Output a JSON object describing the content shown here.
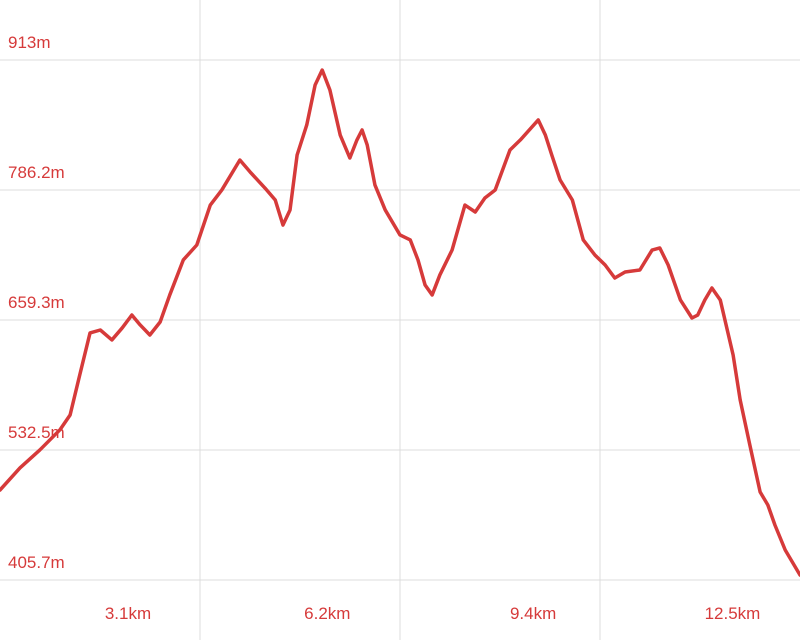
{
  "chart_data": {
    "type": "line",
    "x": [
      1.11,
      1.42,
      1.73,
      2.04,
      2.2,
      2.35,
      2.51,
      2.67,
      2.85,
      3.01,
      3.16,
      3.29,
      3.44,
      3.6,
      3.75,
      3.96,
      4.17,
      4.38,
      4.56,
      4.84,
      5.0,
      5.23,
      5.39,
      5.51,
      5.62,
      5.73,
      5.88,
      6.01,
      6.12,
      6.24,
      6.4,
      6.55,
      6.66,
      6.74,
      6.82,
      6.94,
      7.1,
      7.33,
      7.49,
      7.61,
      7.72,
      7.83,
      7.95,
      8.14,
      8.34,
      8.5,
      8.65,
      8.81,
      9.04,
      9.2,
      9.48,
      9.59,
      9.69,
      9.82,
      10.01,
      10.18,
      10.36,
      10.52,
      10.67,
      10.83,
      11.06,
      11.25,
      11.37,
      11.5,
      11.69,
      11.87,
      11.96,
      12.07,
      12.18,
      12.31,
      12.51,
      12.62,
      12.77,
      12.93,
      13.05,
      13.16,
      13.32,
      13.55
    ],
    "series": [
      {
        "color": "#d63a3a",
        "values": [
          493.5,
          515.0,
          532.6,
          552.1,
          566.7,
          605.7,
          646.7,
          649.6,
          639.9,
          651.6,
          664.2,
          654.5,
          644.7,
          657.4,
          683.8,
          717.9,
          732.5,
          771.5,
          786.2,
          815.4,
          803.7,
          788.1,
          776.4,
          752.0,
          766.7,
          820.3,
          849.6,
          888.6,
          903.2,
          883.7,
          839.8,
          817.4,
          834.9,
          844.7,
          830.1,
          791.1,
          766.7,
          742.3,
          737.4,
          717.9,
          693.5,
          683.8,
          703.3,
          727.6,
          771.5,
          764.7,
          778.4,
          786.2,
          825.2,
          834.9,
          854.5,
          839.8,
          820.3,
          795.9,
          776.4,
          737.4,
          722.8,
          713.0,
          700.3,
          706.2,
          708.1,
          727.6,
          729.6,
          713.0,
          678.9,
          661.3,
          664.2,
          678.9,
          690.6,
          678.9,
          625.2,
          581.3,
          537.4,
          491.6,
          478.9,
          459.4,
          435.0,
          410.6
        ]
      }
    ],
    "xlim": [
      1.11,
      13.55
    ],
    "ylim": [
      347.2,
      971.5
    ],
    "xticks": [
      {
        "value": 3.1,
        "label": "3.1km"
      },
      {
        "value": 6.2,
        "label": "6.2km"
      },
      {
        "value": 9.4,
        "label": "9.4km"
      },
      {
        "value": 12.5,
        "label": "12.5km"
      }
    ],
    "yticks": [
      {
        "value": 405.7,
        "label": "405.7m"
      },
      {
        "value": 532.5,
        "label": "532.5m"
      },
      {
        "value": 659.3,
        "label": "659.3m"
      },
      {
        "value": 786.2,
        "label": "786.2m"
      },
      {
        "value": 913,
        "label": "913m"
      }
    ],
    "grid": true
  }
}
